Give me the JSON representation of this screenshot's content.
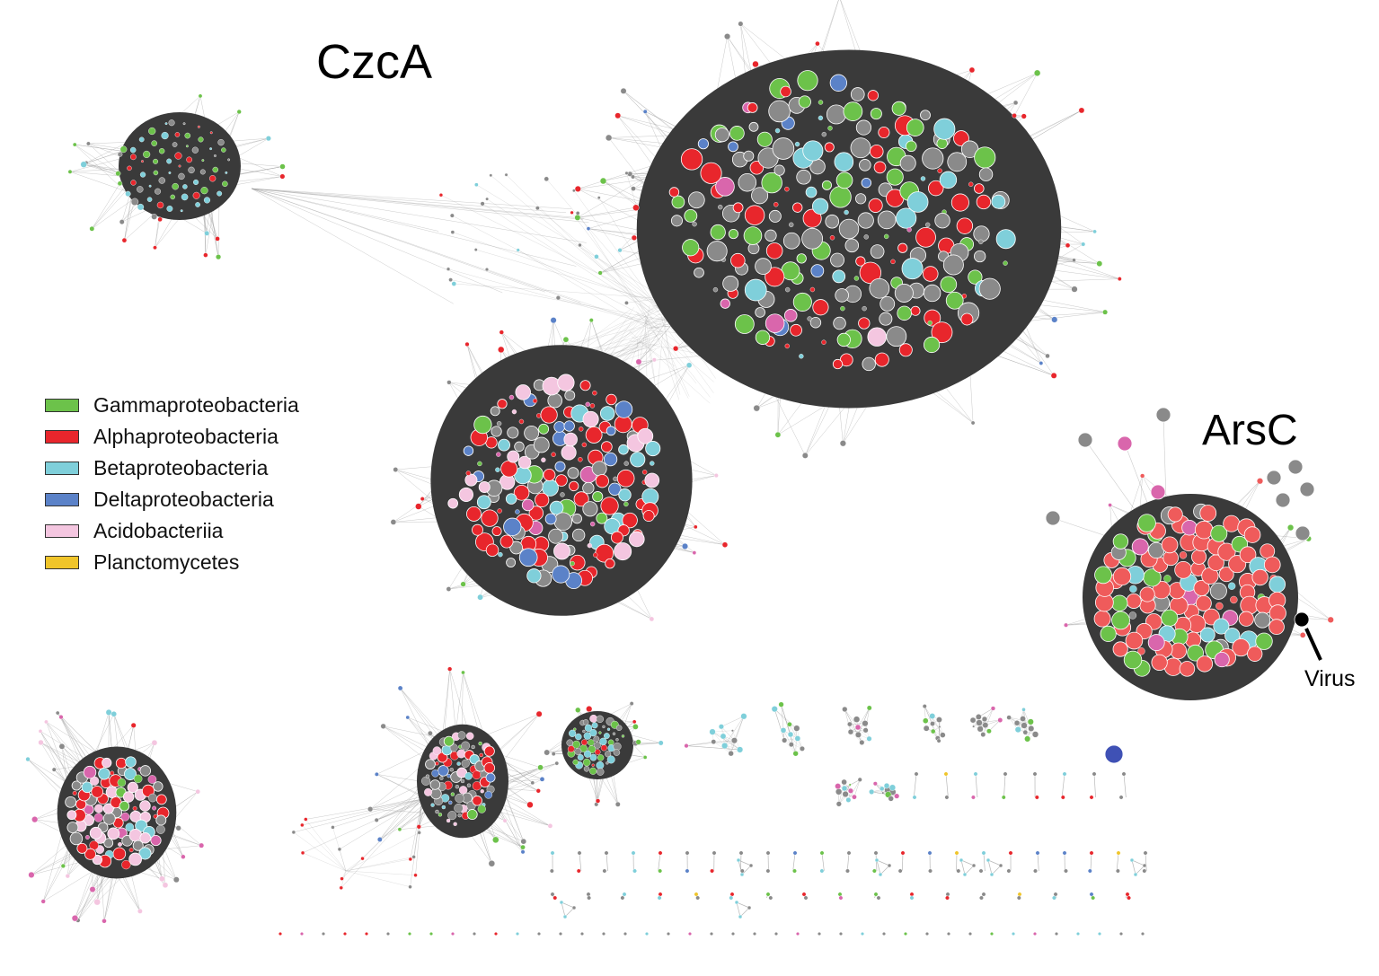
{
  "labels": {
    "czca": "CzcA",
    "arsc": "ArsC",
    "virus": "Virus"
  },
  "legend": [
    {
      "label": "Gammaproteobacteria",
      "color": "#6cc24a"
    },
    {
      "label": "Alphaproteobacteria",
      "color": "#e8262c"
    },
    {
      "label": "Betaproteobacteria",
      "color": "#7fcfda"
    },
    {
      "label": "Deltaproteobacteria",
      "color": "#5b82c8"
    },
    {
      "label": "Acidobacteriia",
      "color": "#f4c6e0"
    },
    {
      "label": "Planctomycetes",
      "color": "#f0c52a"
    }
  ],
  "colors": {
    "other_taxa": "#8a8a8a",
    "dense_core": "#3a3a3a",
    "edges": "#9a9a9a",
    "arsc_alpha": "#ef5b5b",
    "magenta_nodes": "#d966ac",
    "virus_node": "#000000"
  }
}
